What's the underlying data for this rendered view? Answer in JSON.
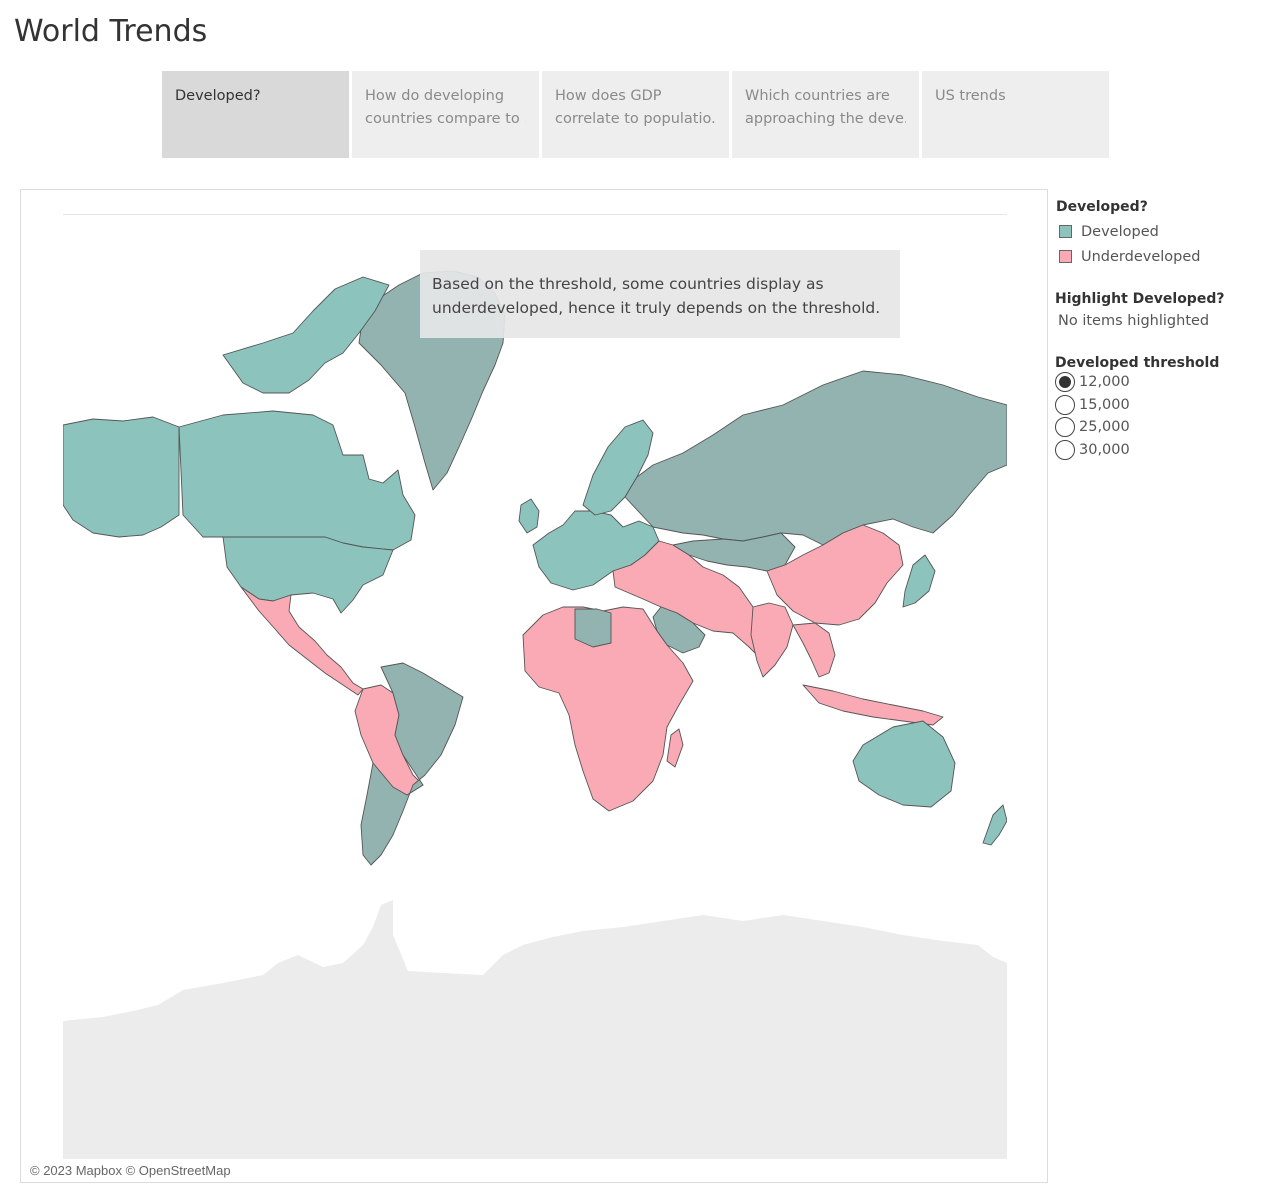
{
  "page": {
    "title": "World Trends"
  },
  "tabs": [
    {
      "lines": [
        "Developed?"
      ],
      "active": true
    },
    {
      "lines": [
        "How do developing",
        "countries compare to .."
      ],
      "active": false
    },
    {
      "lines": [
        "How does GDP",
        "correlate to populatio.."
      ],
      "active": false
    },
    {
      "lines": [
        "Which countries are",
        "approaching the deve.."
      ],
      "active": false
    },
    {
      "lines": [
        "US trends"
      ],
      "active": false
    }
  ],
  "map": {
    "annotation": {
      "line1": "Based on the threshold, some countries display as",
      "line2": "underdeveloped, hence it truly depends on the threshold."
    },
    "attribution": "© 2023 Mapbox © OpenStreetMap",
    "colors": {
      "developed": "#8cc3bd",
      "developed_dark": "#92b3b0",
      "underdeveloped": "#f9aab4",
      "land_base": "#ececec",
      "border": "#555555"
    }
  },
  "legend": {
    "title": "Developed?",
    "items": [
      {
        "label": "Developed",
        "color": "#8cc3bd"
      },
      {
        "label": "Underdeveloped",
        "color": "#f9aab4"
      }
    ]
  },
  "highlight": {
    "title": "Highlight Developed?",
    "value": "No items highlighted"
  },
  "threshold": {
    "title": "Developed threshold",
    "options": [
      "12,000",
      "15,000",
      "25,000",
      "30,000"
    ],
    "selected": "12,000"
  }
}
